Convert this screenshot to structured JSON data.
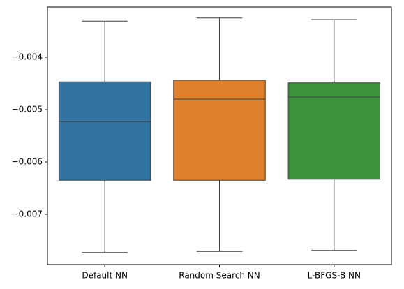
{
  "chart_data": {
    "type": "box",
    "categories": [
      "Default NN",
      "Random Search NN",
      "L-BFGS-B NN"
    ],
    "colors": [
      "#3274a1",
      "#e1812c",
      "#3a923a"
    ],
    "boxes": [
      {
        "min": -0.00773,
        "q1": -0.00635,
        "median": -0.00523,
        "q3": -0.00447,
        "max": -0.00331
      },
      {
        "min": -0.00771,
        "q1": -0.00635,
        "median": -0.0048,
        "q3": -0.00444,
        "max": -0.00325
      },
      {
        "min": -0.00769,
        "q1": -0.00633,
        "median": -0.00476,
        "q3": -0.00449,
        "max": -0.00328
      }
    ],
    "ylim": [
      -0.00796,
      -0.00304
    ],
    "yticks": [
      {
        "value": -0.007,
        "label": "−0.007"
      },
      {
        "value": -0.006,
        "label": "−0.006"
      },
      {
        "value": -0.005,
        "label": "−0.005"
      },
      {
        "value": -0.004,
        "label": "−0.004"
      }
    ]
  }
}
